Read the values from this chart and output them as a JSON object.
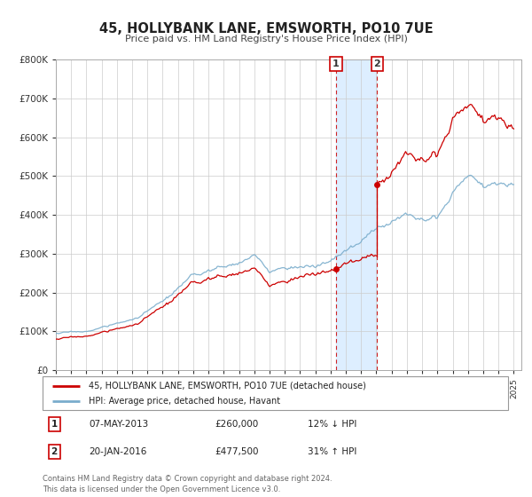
{
  "title": "45, HOLLYBANK LANE, EMSWORTH, PO10 7UE",
  "subtitle": "Price paid vs. HM Land Registry's House Price Index (HPI)",
  "legend_line1": "45, HOLLYBANK LANE, EMSWORTH, PO10 7UE (detached house)",
  "legend_line2": "HPI: Average price, detached house, Havant",
  "transaction1_date": "07-MAY-2013",
  "transaction1_price": "£260,000",
  "transaction1_hpi": "12% ↓ HPI",
  "transaction1_year": 2013.35,
  "transaction1_value": 260000,
  "transaction2_date": "20-JAN-2016",
  "transaction2_price": "£477,500",
  "transaction2_hpi": "31% ↑ HPI",
  "transaction2_year": 2016.05,
  "transaction2_value": 477500,
  "red_color": "#cc0000",
  "blue_color": "#7aadcc",
  "shading_color": "#ddeeff",
  "background_color": "#ffffff",
  "grid_color": "#cccccc",
  "ylim": [
    0,
    800000
  ],
  "xlim_start": 1995.0,
  "xlim_end": 2025.5,
  "footer_text": "Contains HM Land Registry data © Crown copyright and database right 2024.\nThis data is licensed under the Open Government Licence v3.0."
}
